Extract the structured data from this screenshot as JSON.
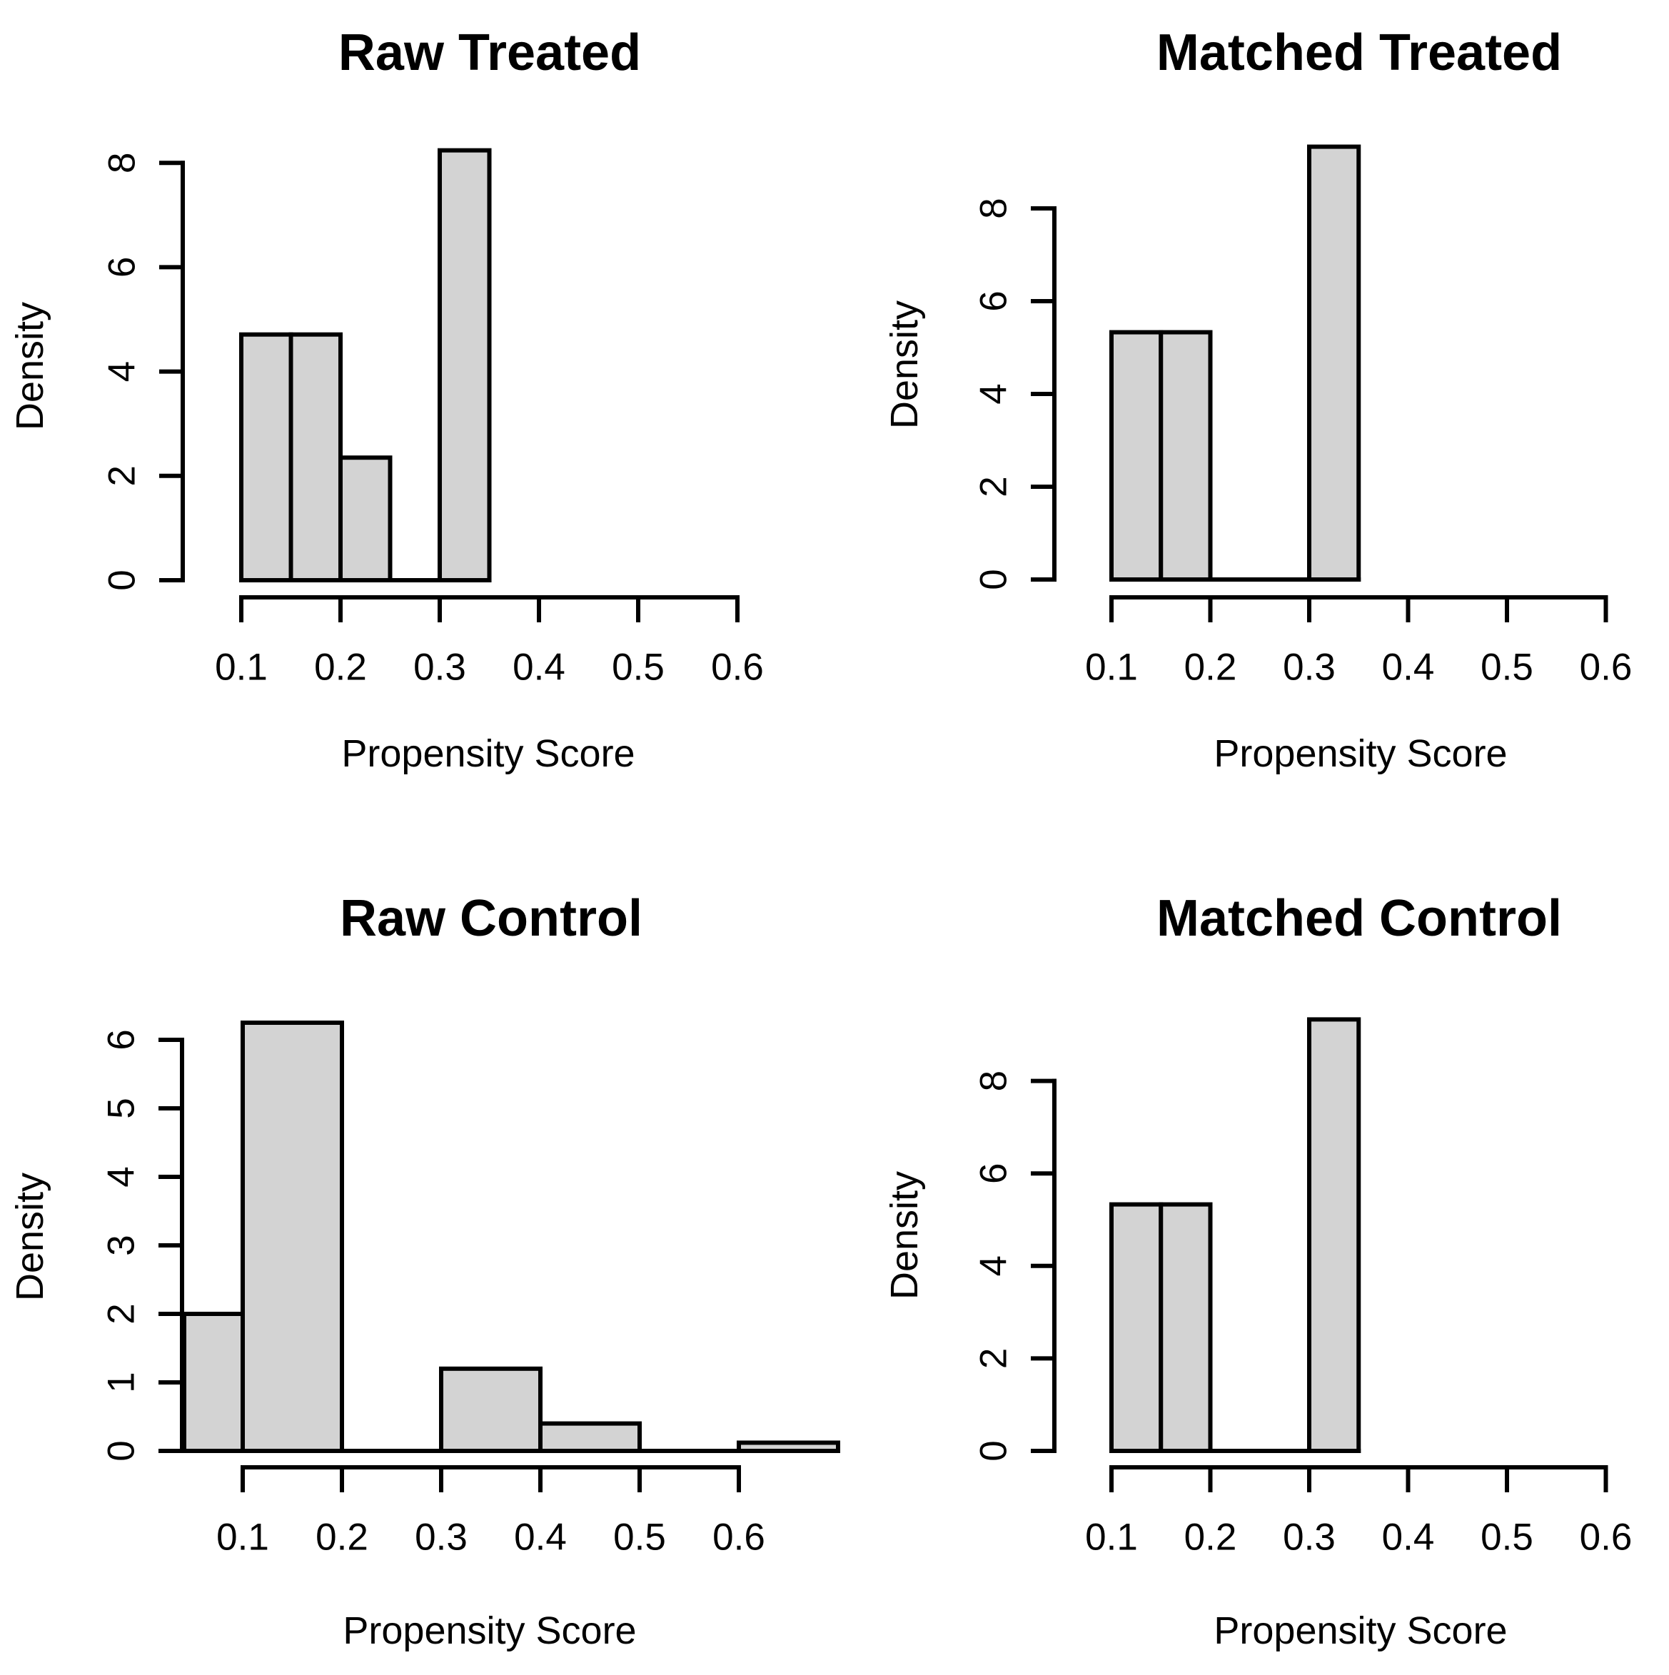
{
  "figure": {
    "background": "#ffffff",
    "line_color": "#000000",
    "bar_fill": "#d3d3d3",
    "bar_border": "#000000"
  },
  "chart_data": [
    {
      "type": "bar",
      "subtype": "histogram",
      "title": "Raw Treated",
      "xlabel": "Propensity Score",
      "ylabel": "Density",
      "grid": false,
      "legend": null,
      "x_ticks": [
        {
          "v": 0.1,
          "label": "0.1"
        },
        {
          "v": 0.2,
          "label": "0.2"
        },
        {
          "v": 0.3,
          "label": "0.3"
        },
        {
          "v": 0.4,
          "label": "0.4"
        },
        {
          "v": 0.5,
          "label": "0.5"
        },
        {
          "v": 0.6,
          "label": "0.6"
        }
      ],
      "y_ticks": [
        {
          "v": 0,
          "label": "0"
        },
        {
          "v": 2,
          "label": "2"
        },
        {
          "v": 4,
          "label": "4"
        },
        {
          "v": 6,
          "label": "6"
        },
        {
          "v": 8,
          "label": "8"
        }
      ],
      "bins": [
        {
          "x0": 0.1,
          "x1": 0.15,
          "density": 4.71
        },
        {
          "x0": 0.15,
          "x1": 0.2,
          "density": 4.71
        },
        {
          "x0": 0.2,
          "x1": 0.25,
          "density": 2.35
        },
        {
          "x0": 0.25,
          "x1": 0.3,
          "density": 0
        },
        {
          "x0": 0.3,
          "x1": 0.35,
          "density": 8.24
        }
      ],
      "xlim": [
        0.04,
        0.66
      ],
      "ylim": [
        0,
        8.24
      ]
    },
    {
      "type": "bar",
      "subtype": "histogram",
      "title": "Matched Treated",
      "xlabel": "Propensity Score",
      "ylabel": "Density",
      "grid": false,
      "legend": null,
      "x_ticks": [
        {
          "v": 0.1,
          "label": "0.1"
        },
        {
          "v": 0.2,
          "label": "0.2"
        },
        {
          "v": 0.3,
          "label": "0.3"
        },
        {
          "v": 0.4,
          "label": "0.4"
        },
        {
          "v": 0.5,
          "label": "0.5"
        },
        {
          "v": 0.6,
          "label": "0.6"
        }
      ],
      "y_ticks": [
        {
          "v": 0,
          "label": "0"
        },
        {
          "v": 2,
          "label": "2"
        },
        {
          "v": 4,
          "label": "4"
        },
        {
          "v": 6,
          "label": "6"
        },
        {
          "v": 8,
          "label": "8"
        }
      ],
      "bins": [
        {
          "x0": 0.1,
          "x1": 0.15,
          "density": 5.33
        },
        {
          "x0": 0.15,
          "x1": 0.2,
          "density": 5.33
        },
        {
          "x0": 0.2,
          "x1": 0.25,
          "density": 0
        },
        {
          "x0": 0.25,
          "x1": 0.3,
          "density": 0
        },
        {
          "x0": 0.3,
          "x1": 0.35,
          "density": 9.33
        }
      ],
      "xlim": [
        0.04,
        0.66
      ],
      "ylim": [
        0,
        9.33
      ]
    },
    {
      "type": "bar",
      "subtype": "histogram",
      "title": "Raw Control",
      "xlabel": "Propensity Score",
      "ylabel": "Density",
      "grid": false,
      "legend": null,
      "x_ticks": [
        {
          "v": 0.1,
          "label": "0.1"
        },
        {
          "v": 0.2,
          "label": "0.2"
        },
        {
          "v": 0.3,
          "label": "0.3"
        },
        {
          "v": 0.4,
          "label": "0.4"
        },
        {
          "v": 0.5,
          "label": "0.5"
        },
        {
          "v": 0.6,
          "label": "0.6"
        }
      ],
      "y_ticks": [
        {
          "v": 0,
          "label": "0"
        },
        {
          "v": 1,
          "label": "1"
        },
        {
          "v": 2,
          "label": "2"
        },
        {
          "v": 3,
          "label": "3"
        },
        {
          "v": 4,
          "label": "4"
        },
        {
          "v": 5,
          "label": "5"
        },
        {
          "v": 6,
          "label": "6"
        }
      ],
      "bins": [
        {
          "x0": 0.0,
          "x1": 0.1,
          "density": 2.0
        },
        {
          "x0": 0.1,
          "x1": 0.2,
          "density": 6.25
        },
        {
          "x0": 0.2,
          "x1": 0.3,
          "density": 0
        },
        {
          "x0": 0.3,
          "x1": 0.4,
          "density": 1.2
        },
        {
          "x0": 0.4,
          "x1": 0.5,
          "density": 0.4
        },
        {
          "x0": 0.5,
          "x1": 0.6,
          "density": 0
        },
        {
          "x0": 0.6,
          "x1": 0.7,
          "density": 0.12
        }
      ],
      "xlim": [
        0.04,
        0.7
      ],
      "ylim": [
        0,
        6.25
      ]
    },
    {
      "type": "bar",
      "subtype": "histogram",
      "title": "Matched Control",
      "xlabel": "Propensity Score",
      "ylabel": "Density",
      "grid": false,
      "legend": null,
      "x_ticks": [
        {
          "v": 0.1,
          "label": "0.1"
        },
        {
          "v": 0.2,
          "label": "0.2"
        },
        {
          "v": 0.3,
          "label": "0.3"
        },
        {
          "v": 0.4,
          "label": "0.4"
        },
        {
          "v": 0.5,
          "label": "0.5"
        },
        {
          "v": 0.6,
          "label": "0.6"
        }
      ],
      "y_ticks": [
        {
          "v": 0,
          "label": "0"
        },
        {
          "v": 2,
          "label": "2"
        },
        {
          "v": 4,
          "label": "4"
        },
        {
          "v": 6,
          "label": "6"
        },
        {
          "v": 8,
          "label": "8"
        }
      ],
      "bins": [
        {
          "x0": 0.1,
          "x1": 0.15,
          "density": 5.33
        },
        {
          "x0": 0.15,
          "x1": 0.2,
          "density": 5.33
        },
        {
          "x0": 0.2,
          "x1": 0.25,
          "density": 0
        },
        {
          "x0": 0.25,
          "x1": 0.3,
          "density": 0
        },
        {
          "x0": 0.3,
          "x1": 0.35,
          "density": 9.33
        }
      ],
      "xlim": [
        0.04,
        0.66
      ],
      "ylim": [
        0,
        9.33
      ]
    }
  ]
}
